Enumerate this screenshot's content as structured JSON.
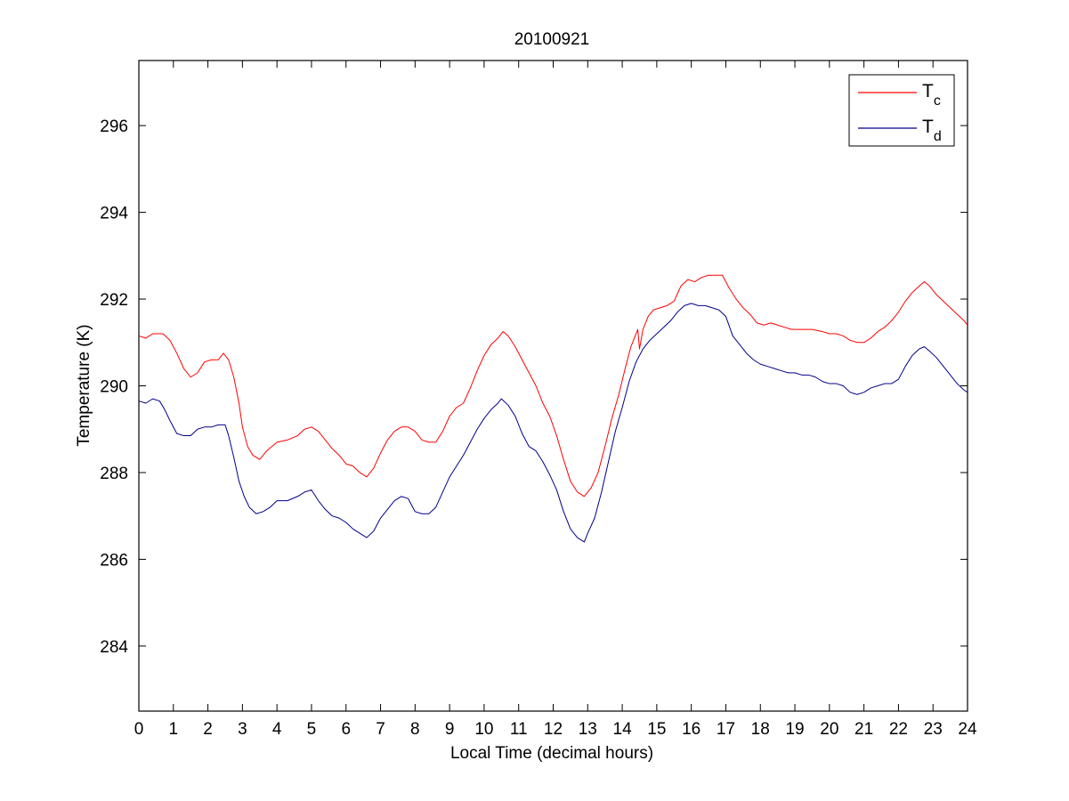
{
  "chart_data": {
    "type": "line",
    "title": "20100921",
    "xlabel": "Local Time (decimal hours)",
    "ylabel": "Temperature (K)",
    "xlim": [
      0,
      24
    ],
    "ylim": [
      282.5,
      297.5
    ],
    "xticks": [
      0,
      1,
      2,
      3,
      4,
      5,
      6,
      7,
      8,
      9,
      10,
      11,
      12,
      13,
      14,
      15,
      16,
      17,
      18,
      19,
      20,
      21,
      22,
      23,
      24
    ],
    "yticks": [
      284,
      286,
      288,
      290,
      292,
      294,
      296
    ],
    "grid": false,
    "legend_position": "top-right",
    "series": [
      {
        "name": "T",
        "subscript": "c",
        "color": "#ff0000",
        "points": [
          [
            0,
            291.15
          ],
          [
            0.2,
            291.1
          ],
          [
            0.4,
            291.2
          ],
          [
            0.7,
            291.2
          ],
          [
            0.9,
            291.05
          ],
          [
            1.1,
            290.75
          ],
          [
            1.3,
            290.4
          ],
          [
            1.5,
            290.2
          ],
          [
            1.7,
            290.3
          ],
          [
            1.9,
            290.55
          ],
          [
            2.1,
            290.6
          ],
          [
            2.3,
            290.6
          ],
          [
            2.45,
            290.75
          ],
          [
            2.6,
            290.6
          ],
          [
            2.75,
            290.2
          ],
          [
            2.9,
            289.6
          ],
          [
            3.0,
            289.05
          ],
          [
            3.15,
            288.6
          ],
          [
            3.3,
            288.4
          ],
          [
            3.5,
            288.3
          ],
          [
            3.7,
            288.5
          ],
          [
            4.0,
            288.7
          ],
          [
            4.3,
            288.75
          ],
          [
            4.6,
            288.85
          ],
          [
            4.8,
            289.0
          ],
          [
            5.0,
            289.05
          ],
          [
            5.2,
            288.95
          ],
          [
            5.4,
            288.75
          ],
          [
            5.6,
            288.55
          ],
          [
            5.8,
            288.4
          ],
          [
            6.0,
            288.2
          ],
          [
            6.2,
            288.15
          ],
          [
            6.4,
            288.0
          ],
          [
            6.6,
            287.9
          ],
          [
            6.8,
            288.1
          ],
          [
            7.0,
            288.45
          ],
          [
            7.2,
            288.75
          ],
          [
            7.4,
            288.95
          ],
          [
            7.6,
            289.05
          ],
          [
            7.8,
            289.05
          ],
          [
            8.0,
            288.95
          ],
          [
            8.2,
            288.75
          ],
          [
            8.4,
            288.7
          ],
          [
            8.6,
            288.7
          ],
          [
            8.8,
            288.95
          ],
          [
            9.0,
            289.3
          ],
          [
            9.2,
            289.5
          ],
          [
            9.4,
            289.6
          ],
          [
            9.6,
            289.95
          ],
          [
            9.8,
            290.35
          ],
          [
            10.0,
            290.7
          ],
          [
            10.2,
            290.95
          ],
          [
            10.4,
            291.1
          ],
          [
            10.55,
            291.25
          ],
          [
            10.7,
            291.15
          ],
          [
            10.9,
            290.9
          ],
          [
            11.1,
            290.6
          ],
          [
            11.3,
            290.3
          ],
          [
            11.5,
            290.0
          ],
          [
            11.7,
            289.6
          ],
          [
            11.9,
            289.3
          ],
          [
            12.1,
            288.85
          ],
          [
            12.3,
            288.3
          ],
          [
            12.5,
            287.8
          ],
          [
            12.7,
            287.55
          ],
          [
            12.9,
            287.45
          ],
          [
            13.1,
            287.65
          ],
          [
            13.3,
            288.0
          ],
          [
            13.5,
            288.6
          ],
          [
            13.7,
            289.25
          ],
          [
            13.9,
            289.8
          ],
          [
            14.1,
            290.45
          ],
          [
            14.25,
            290.9
          ],
          [
            14.35,
            291.1
          ],
          [
            14.45,
            291.3
          ],
          [
            14.5,
            290.85
          ],
          [
            14.6,
            291.3
          ],
          [
            14.75,
            291.6
          ],
          [
            14.9,
            291.75
          ],
          [
            15.1,
            291.8
          ],
          [
            15.3,
            291.85
          ],
          [
            15.5,
            291.95
          ],
          [
            15.7,
            292.3
          ],
          [
            15.9,
            292.45
          ],
          [
            16.1,
            292.4
          ],
          [
            16.3,
            292.5
          ],
          [
            16.5,
            292.55
          ],
          [
            16.7,
            292.55
          ],
          [
            16.9,
            292.55
          ],
          [
            17.1,
            292.25
          ],
          [
            17.3,
            292.0
          ],
          [
            17.5,
            291.8
          ],
          [
            17.7,
            291.65
          ],
          [
            17.9,
            291.45
          ],
          [
            18.1,
            291.4
          ],
          [
            18.3,
            291.45
          ],
          [
            18.5,
            291.4
          ],
          [
            18.7,
            291.35
          ],
          [
            18.9,
            291.3
          ],
          [
            19.2,
            291.3
          ],
          [
            19.5,
            291.3
          ],
          [
            19.8,
            291.25
          ],
          [
            20.0,
            291.2
          ],
          [
            20.2,
            291.2
          ],
          [
            20.4,
            291.15
          ],
          [
            20.6,
            291.05
          ],
          [
            20.8,
            291.0
          ],
          [
            21.0,
            291.0
          ],
          [
            21.2,
            291.1
          ],
          [
            21.4,
            291.25
          ],
          [
            21.6,
            291.35
          ],
          [
            21.8,
            291.5
          ],
          [
            22.0,
            291.7
          ],
          [
            22.2,
            291.95
          ],
          [
            22.4,
            292.15
          ],
          [
            22.6,
            292.3
          ],
          [
            22.75,
            292.4
          ],
          [
            22.9,
            292.3
          ],
          [
            23.1,
            292.1
          ],
          [
            23.3,
            291.95
          ],
          [
            23.5,
            291.8
          ],
          [
            23.7,
            291.65
          ],
          [
            23.9,
            291.5
          ],
          [
            24.0,
            291.4
          ]
        ]
      },
      {
        "name": "T",
        "subscript": "d",
        "color": "#00008b",
        "points": [
          [
            0,
            289.65
          ],
          [
            0.2,
            289.6
          ],
          [
            0.4,
            289.7
          ],
          [
            0.6,
            289.65
          ],
          [
            0.75,
            289.45
          ],
          [
            0.9,
            289.2
          ],
          [
            1.1,
            288.9
          ],
          [
            1.3,
            288.85
          ],
          [
            1.5,
            288.85
          ],
          [
            1.7,
            289.0
          ],
          [
            1.9,
            289.05
          ],
          [
            2.1,
            289.05
          ],
          [
            2.3,
            289.1
          ],
          [
            2.5,
            289.1
          ],
          [
            2.6,
            288.85
          ],
          [
            2.75,
            288.35
          ],
          [
            2.9,
            287.8
          ],
          [
            3.05,
            287.45
          ],
          [
            3.2,
            287.2
          ],
          [
            3.4,
            287.05
          ],
          [
            3.6,
            287.1
          ],
          [
            3.8,
            287.2
          ],
          [
            4.0,
            287.35
          ],
          [
            4.3,
            287.35
          ],
          [
            4.6,
            287.45
          ],
          [
            4.8,
            287.55
          ],
          [
            5.0,
            287.6
          ],
          [
            5.2,
            287.35
          ],
          [
            5.4,
            287.15
          ],
          [
            5.6,
            287.0
          ],
          [
            5.8,
            286.95
          ],
          [
            6.0,
            286.85
          ],
          [
            6.2,
            286.7
          ],
          [
            6.4,
            286.6
          ],
          [
            6.6,
            286.5
          ],
          [
            6.8,
            286.65
          ],
          [
            7.0,
            286.95
          ],
          [
            7.2,
            287.15
          ],
          [
            7.4,
            287.35
          ],
          [
            7.6,
            287.45
          ],
          [
            7.8,
            287.4
          ],
          [
            8.0,
            287.1
          ],
          [
            8.2,
            287.05
          ],
          [
            8.4,
            287.05
          ],
          [
            8.6,
            287.2
          ],
          [
            8.8,
            287.55
          ],
          [
            9.0,
            287.9
          ],
          [
            9.2,
            288.15
          ],
          [
            9.4,
            288.4
          ],
          [
            9.6,
            288.7
          ],
          [
            9.8,
            289.0
          ],
          [
            10.0,
            289.25
          ],
          [
            10.2,
            289.45
          ],
          [
            10.4,
            289.6
          ],
          [
            10.5,
            289.7
          ],
          [
            10.7,
            289.55
          ],
          [
            10.9,
            289.3
          ],
          [
            11.1,
            288.9
          ],
          [
            11.3,
            288.6
          ],
          [
            11.5,
            288.5
          ],
          [
            11.7,
            288.25
          ],
          [
            11.9,
            287.95
          ],
          [
            12.1,
            287.6
          ],
          [
            12.3,
            287.1
          ],
          [
            12.5,
            286.7
          ],
          [
            12.7,
            286.5
          ],
          [
            12.9,
            286.4
          ],
          [
            13.0,
            286.6
          ],
          [
            13.2,
            286.95
          ],
          [
            13.4,
            287.55
          ],
          [
            13.6,
            288.25
          ],
          [
            13.8,
            288.95
          ],
          [
            14.0,
            289.5
          ],
          [
            14.2,
            290.1
          ],
          [
            14.4,
            290.55
          ],
          [
            14.6,
            290.85
          ],
          [
            14.8,
            291.05
          ],
          [
            15.0,
            291.2
          ],
          [
            15.2,
            291.35
          ],
          [
            15.4,
            291.5
          ],
          [
            15.6,
            291.7
          ],
          [
            15.8,
            291.85
          ],
          [
            16.0,
            291.9
          ],
          [
            16.2,
            291.85
          ],
          [
            16.4,
            291.85
          ],
          [
            16.6,
            291.8
          ],
          [
            16.8,
            291.75
          ],
          [
            17.0,
            291.6
          ],
          [
            17.2,
            291.15
          ],
          [
            17.4,
            290.95
          ],
          [
            17.6,
            290.75
          ],
          [
            17.8,
            290.6
          ],
          [
            18.0,
            290.5
          ],
          [
            18.2,
            290.45
          ],
          [
            18.4,
            290.4
          ],
          [
            18.6,
            290.35
          ],
          [
            18.8,
            290.3
          ],
          [
            19.0,
            290.3
          ],
          [
            19.2,
            290.25
          ],
          [
            19.4,
            290.25
          ],
          [
            19.6,
            290.2
          ],
          [
            19.8,
            290.1
          ],
          [
            20.0,
            290.05
          ],
          [
            20.2,
            290.05
          ],
          [
            20.4,
            290.0
          ],
          [
            20.6,
            289.85
          ],
          [
            20.8,
            289.8
          ],
          [
            21.0,
            289.85
          ],
          [
            21.2,
            289.95
          ],
          [
            21.4,
            290.0
          ],
          [
            21.6,
            290.05
          ],
          [
            21.8,
            290.05
          ],
          [
            22.0,
            290.15
          ],
          [
            22.2,
            290.45
          ],
          [
            22.4,
            290.7
          ],
          [
            22.6,
            290.85
          ],
          [
            22.75,
            290.9
          ],
          [
            22.9,
            290.8
          ],
          [
            23.1,
            290.65
          ],
          [
            23.3,
            290.45
          ],
          [
            23.5,
            290.25
          ],
          [
            23.7,
            290.05
          ],
          [
            23.9,
            289.9
          ],
          [
            24.0,
            289.85
          ]
        ]
      }
    ]
  }
}
